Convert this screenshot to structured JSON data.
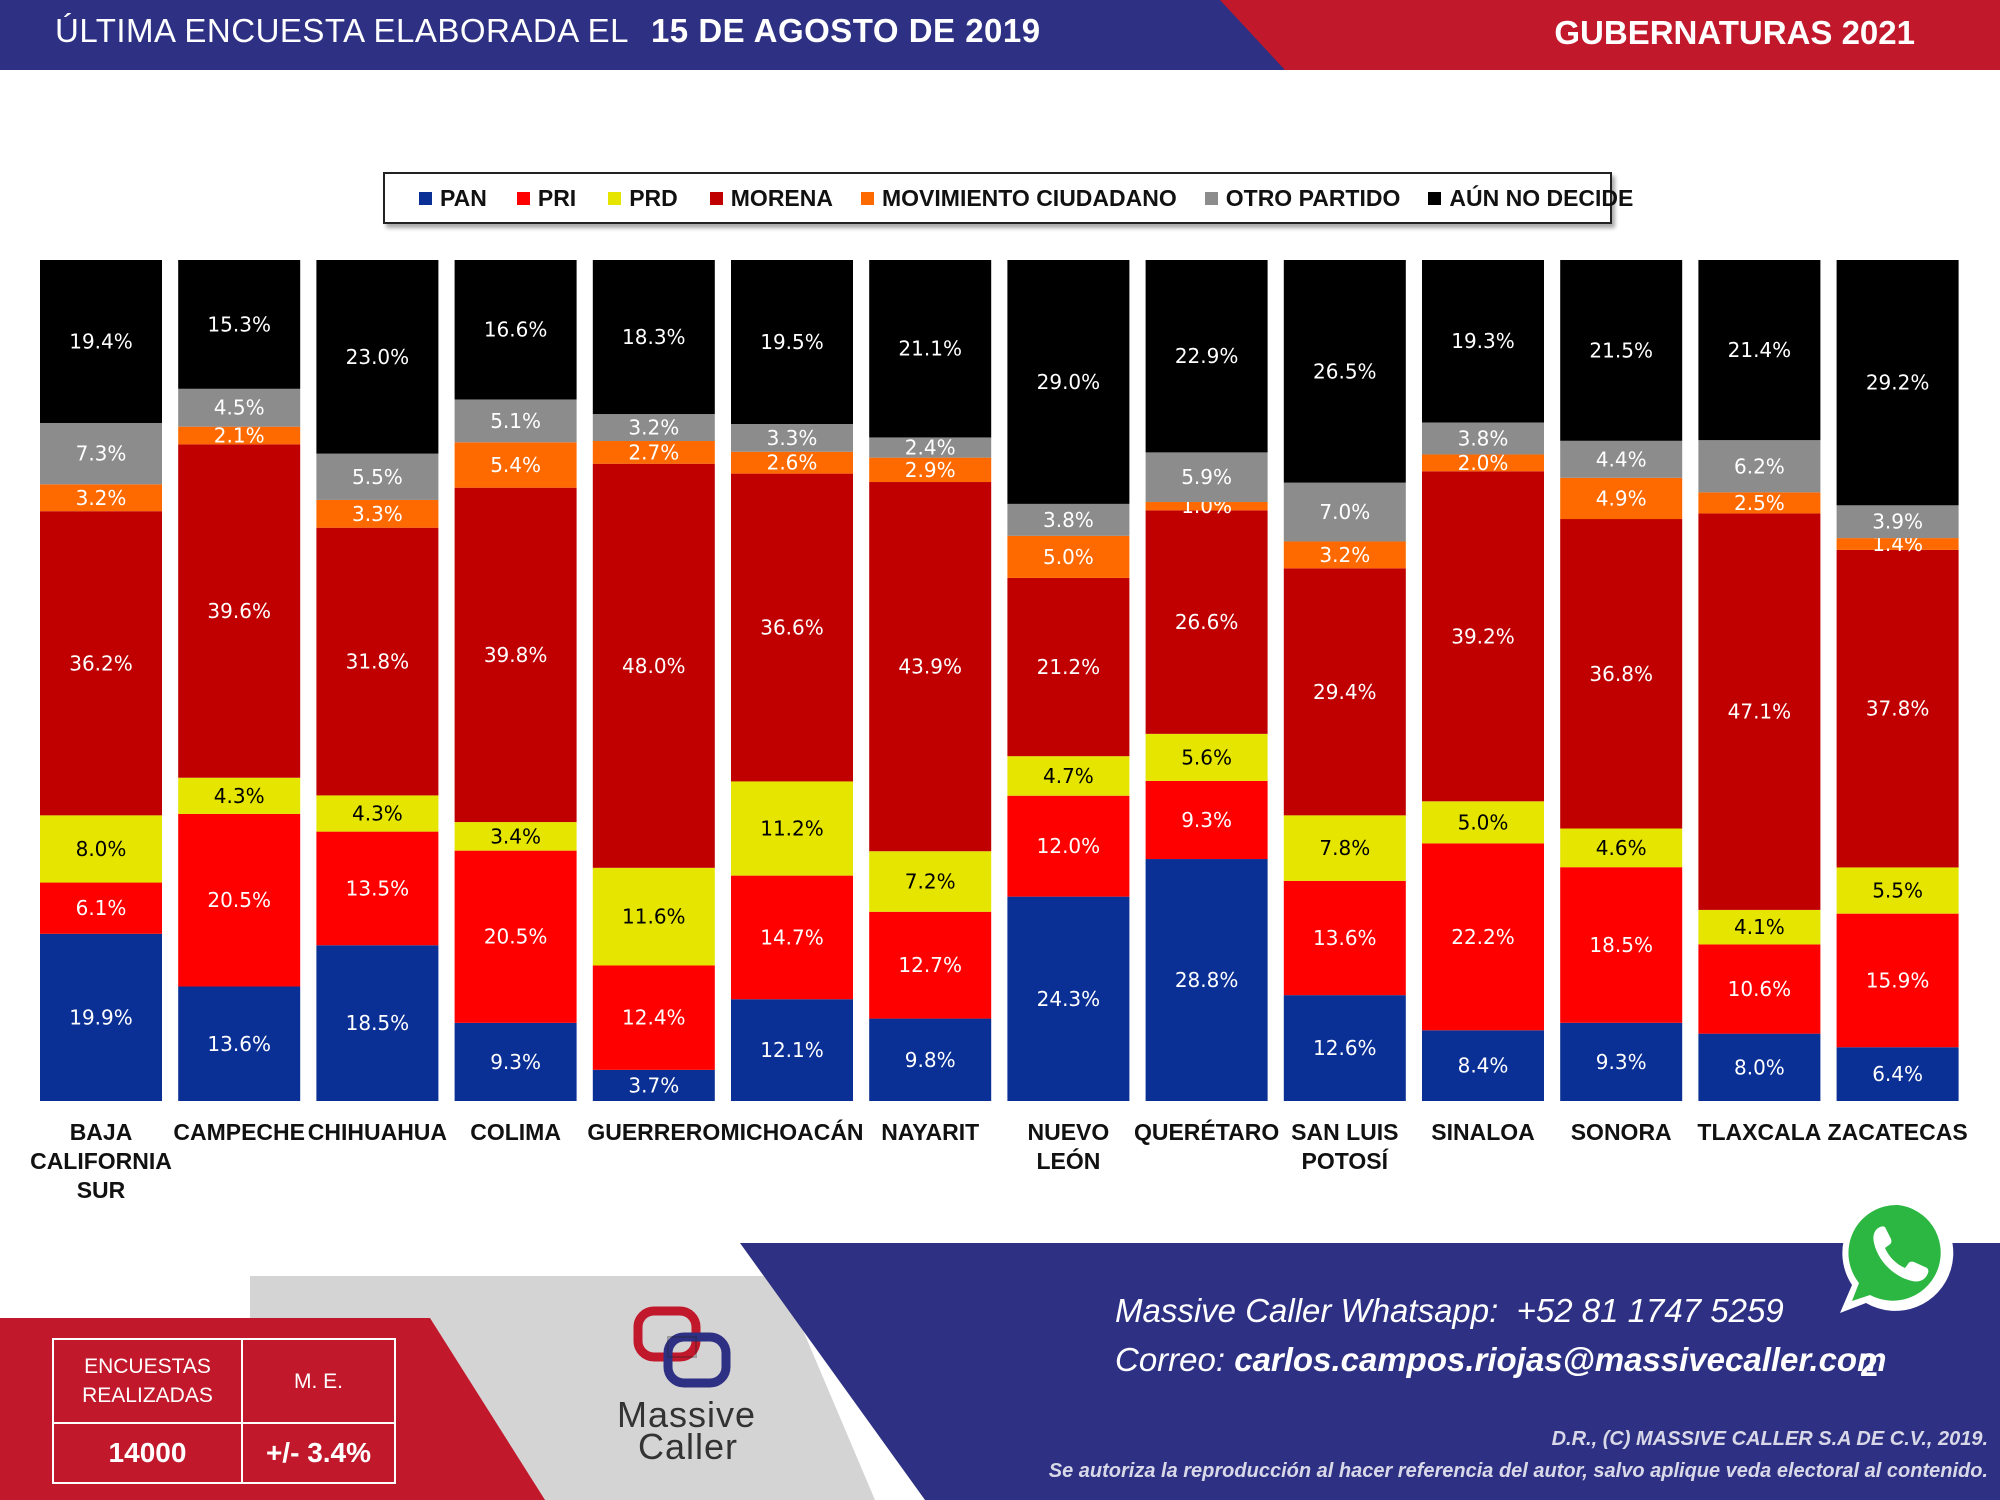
{
  "header": {
    "survey_label": "ÚLTIMA ENCUESTA ELABORADA EL",
    "survey_date": "15 DE AGOSTO DE 2019",
    "topic": "GUBERNATURAS 2021"
  },
  "colors": {
    "navy": "#2e3183",
    "red_brand": "#c2182b",
    "PAN": "#0a2f95",
    "PRI": "#ff0000",
    "PRD": "#e5e500",
    "MORENA": "#c00000",
    "MOVIMIENTO CIUDADANO": "#ff6a00",
    "OTRO PARTIDO": "#8c8c8c",
    "AÚN NO DECIDE": "#000000"
  },
  "chart_data": {
    "type": "bar",
    "stacked": true,
    "normalized": true,
    "legend_position": "top",
    "grid": false,
    "categories": [
      [
        "BAJA",
        "CALIFORNIA",
        "SUR"
      ],
      [
        "CAMPECHE"
      ],
      [
        "CHIHUAHUA"
      ],
      [
        "COLIMA"
      ],
      [
        "GUERRERO"
      ],
      [
        "MICHOACÁN"
      ],
      [
        "NAYARIT"
      ],
      [
        "NUEVO",
        "LEÓN"
      ],
      [
        "QUERÉTARO"
      ],
      [
        "SAN LUIS",
        "POTOSÍ"
      ],
      [
        "SINALOA"
      ],
      [
        "SONORA"
      ],
      [
        "TLAXCALA"
      ],
      [
        "ZACATECAS"
      ]
    ],
    "series": [
      {
        "name": "PAN",
        "values": [
          19.9,
          13.6,
          18.5,
          9.3,
          3.7,
          12.1,
          9.8,
          24.3,
          28.8,
          12.6,
          8.4,
          9.3,
          8.0,
          6.4
        ]
      },
      {
        "name": "PRI",
        "values": [
          6.1,
          20.5,
          13.5,
          20.5,
          12.4,
          14.7,
          12.7,
          12.0,
          9.3,
          13.6,
          22.2,
          18.5,
          10.6,
          15.9
        ]
      },
      {
        "name": "PRD",
        "values": [
          8.0,
          4.3,
          4.3,
          3.4,
          11.6,
          11.2,
          7.2,
          4.7,
          5.6,
          7.8,
          5.0,
          4.6,
          4.1,
          5.5
        ]
      },
      {
        "name": "MORENA",
        "values": [
          36.2,
          39.6,
          31.8,
          39.8,
          48.0,
          36.6,
          43.9,
          21.2,
          26.6,
          29.4,
          39.2,
          36.8,
          47.1,
          37.8
        ]
      },
      {
        "name": "MOVIMIENTO CIUDADANO",
        "values": [
          3.2,
          2.1,
          3.3,
          5.4,
          2.7,
          2.6,
          2.9,
          5.0,
          1.0,
          3.2,
          2.0,
          4.9,
          2.5,
          1.4
        ]
      },
      {
        "name": "OTRO PARTIDO",
        "values": [
          7.3,
          4.5,
          5.5,
          5.1,
          3.2,
          3.3,
          2.4,
          3.8,
          5.9,
          7.0,
          3.8,
          4.4,
          6.2,
          3.9
        ]
      },
      {
        "name": "AÚN NO DECIDE",
        "values": [
          19.4,
          15.3,
          23.0,
          16.6,
          18.3,
          19.5,
          21.1,
          29.0,
          22.9,
          26.5,
          19.3,
          21.5,
          21.4,
          29.2
        ]
      }
    ]
  },
  "stats": {
    "col1_header_line1": "ENCUESTAS",
    "col1_header_line2": "REALIZADAS",
    "col2_header": "M. E.",
    "col1_value": "14000",
    "col2_value": "+/- 3.4%"
  },
  "contact": {
    "whatsapp_label": "Massive Caller Whatsapp:",
    "whatsapp_number": "+52  81 1747 5259",
    "email_label": "Correo:",
    "email": "carlos.campos.riojas@massivecaller.com"
  },
  "page_number": "2",
  "copyright_line1": "D.R., (C) MASSIVE CALLER S.A DE C.V., 2019.",
  "copyright_line2": "Se autoriza la reproducción al hacer referencia del autor, salvo aplique veda electoral al contenido.",
  "brand": {
    "line1": "Massive",
    "line2": "Caller"
  },
  "icons": {
    "whatsapp": "whatsapp-icon",
    "logo": "massive-caller-logo"
  }
}
